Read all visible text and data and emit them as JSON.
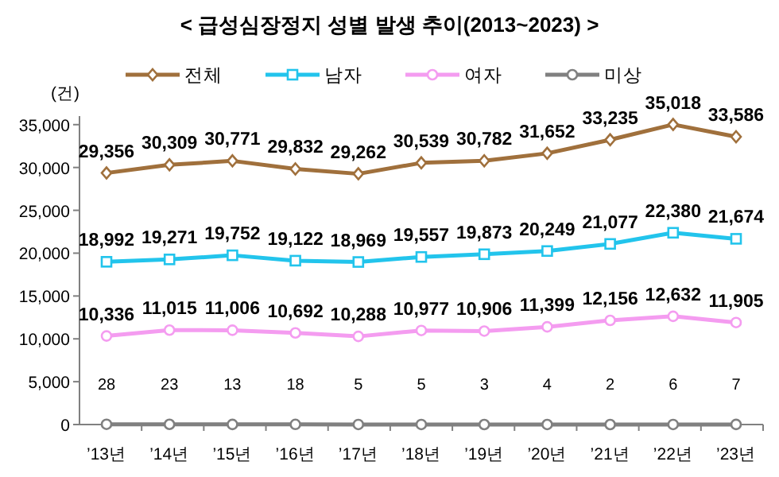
{
  "chart_data": {
    "type": "line",
    "title": "< 급성심장정지 성별 발생 추이(2013~2023) >",
    "ylabel": "(건)",
    "categories": [
      "’13년",
      "’14년",
      "’15년",
      "’16년",
      "’17년",
      "’18년",
      "’19년",
      "’20년",
      "’21년",
      "’22년",
      "’23년"
    ],
    "series": [
      {
        "name": "전체",
        "color": "#a0703c",
        "marker": "diamond",
        "values": [
          29356,
          30309,
          30771,
          29832,
          29262,
          30539,
          30782,
          31652,
          33235,
          35018,
          33586
        ],
        "value_labels": [
          "29,356",
          "30,309",
          "30,771",
          "29,832",
          "29,262",
          "30,539",
          "30,782",
          "31,652",
          "33,235",
          "35,018",
          "33,586"
        ]
      },
      {
        "name": "남자",
        "color": "#22c4ec",
        "marker": "square",
        "values": [
          18992,
          19271,
          19752,
          19122,
          18969,
          19557,
          19873,
          20249,
          21077,
          22380,
          21674
        ],
        "value_labels": [
          "18,992",
          "19,271",
          "19,752",
          "19,122",
          "18,969",
          "19,557",
          "19,873",
          "20,249",
          "21,077",
          "22,380",
          "21,674"
        ]
      },
      {
        "name": "여자",
        "color": "#f49cf0",
        "marker": "circle",
        "values": [
          10336,
          11015,
          11006,
          10692,
          10288,
          10977,
          10906,
          11399,
          12156,
          12632,
          11905
        ],
        "value_labels": [
          "10,336",
          "11,015",
          "11,006",
          "10,692",
          "10,288",
          "10,977",
          "10,906",
          "11,399",
          "12,156",
          "12,632",
          "11,905"
        ]
      },
      {
        "name": "미상",
        "color": "#808080",
        "marker": "circle",
        "values": [
          28,
          23,
          13,
          18,
          5,
          5,
          3,
          4,
          2,
          6,
          7
        ],
        "value_labels": [
          "28",
          "23",
          "13",
          "18",
          "5",
          "5",
          "3",
          "4",
          "2",
          "6",
          "7"
        ]
      }
    ],
    "ylim": [
      0,
      36000
    ],
    "yticks": [
      {
        "value": 0,
        "label": "0"
      },
      {
        "value": 5000,
        "label": "5,000"
      },
      {
        "value": 10000,
        "label": "10,000"
      },
      {
        "value": 15000,
        "label": "15,000"
      },
      {
        "value": 20000,
        "label": "20,000"
      },
      {
        "value": 25000,
        "label": "25,000"
      },
      {
        "value": 30000,
        "label": "30,000"
      },
      {
        "value": 35000,
        "label": "35,000"
      }
    ],
    "legend": "top",
    "line_style": "solid"
  }
}
